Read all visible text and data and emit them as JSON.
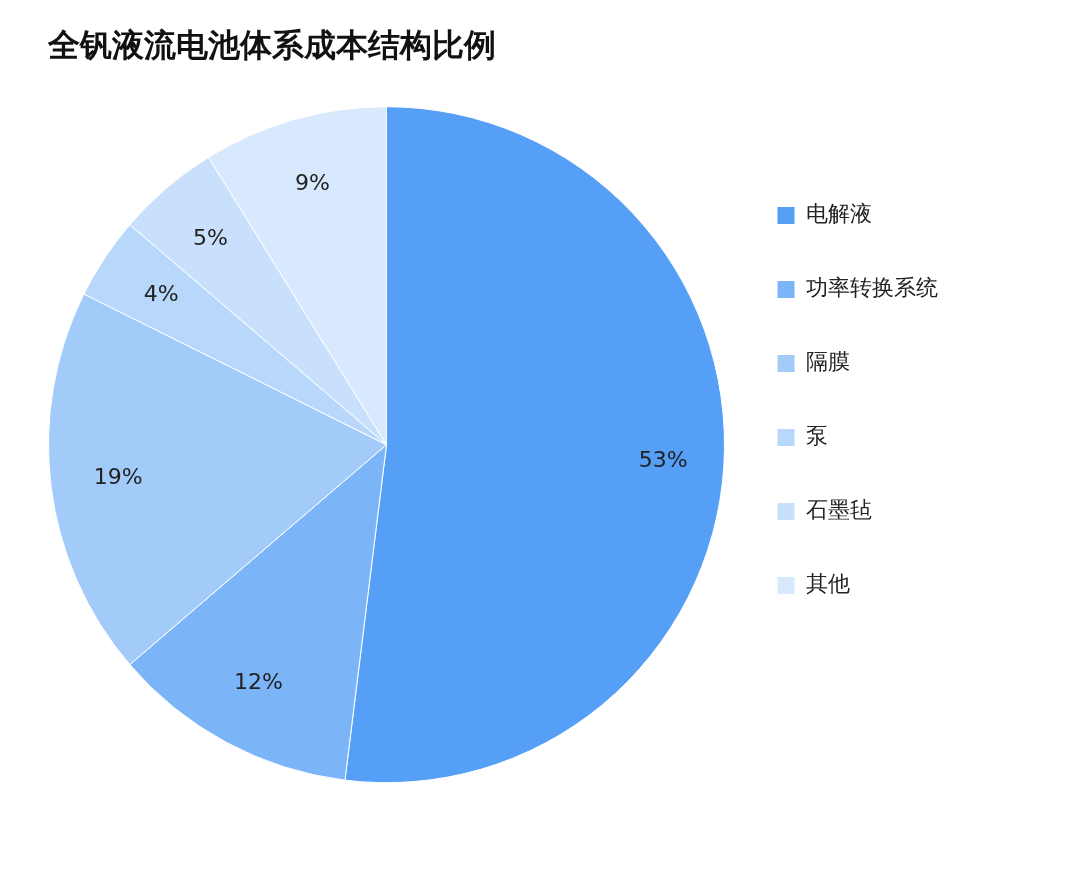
{
  "chart_data": {
    "type": "pie",
    "title": "全钒液流电池体系成本结构比例",
    "categories": [
      "电解液",
      "功率转换系统",
      "隔膜",
      "泵",
      "石墨毡",
      "其他"
    ],
    "values": [
      53,
      12,
      19,
      4,
      5,
      9
    ],
    "colors": [
      "#559ff7",
      "#7bb5f8",
      "#a2cbfa",
      "#b7d7fb",
      "#c8e0fc",
      "#d9e9fd"
    ],
    "value_labels": [
      "53%",
      "12%",
      "19%",
      "4%",
      "5%",
      "9%"
    ],
    "legend": "right"
  }
}
